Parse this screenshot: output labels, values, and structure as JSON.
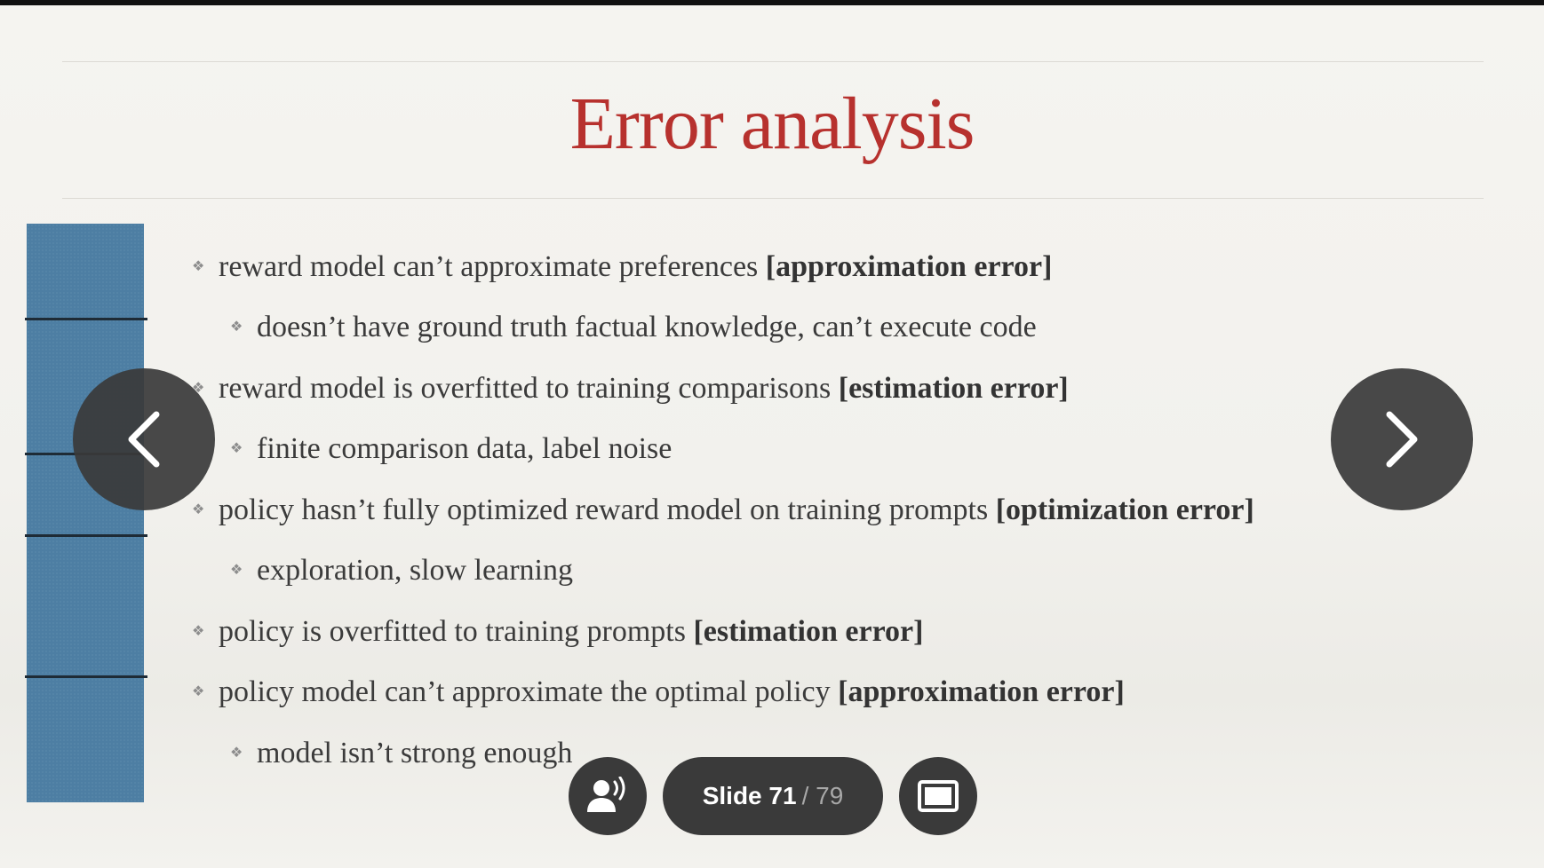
{
  "slide": {
    "title": "Error analysis",
    "bullets": [
      {
        "level": 1,
        "text": "reward model can’t approximate preferences ",
        "bold": "[approximation error]"
      },
      {
        "level": 2,
        "text": "doesn’t have ground truth factual knowledge, can’t execute code",
        "bold": ""
      },
      {
        "level": 1,
        "text": "reward model is overfitted to training comparisons ",
        "bold": "[estimation error]"
      },
      {
        "level": 2,
        "text": "finite comparison data, label noise",
        "bold": ""
      },
      {
        "level": 1,
        "text": "policy hasn’t fully optimized reward model on training prompts ",
        "bold": "[optimization error]"
      },
      {
        "level": 2,
        "text": "exploration, slow learning",
        "bold": ""
      },
      {
        "level": 1,
        "text": "policy is overfitted to training prompts ",
        "bold": "[estimation error]"
      },
      {
        "level": 1,
        "text": "policy model can’t approximate the optimal policy ",
        "bold": "[approximation error]"
      },
      {
        "level": 2,
        "text": "model isn’t strong enough",
        "bold": ""
      }
    ]
  },
  "controls": {
    "prev_icon": "chevron-left-icon",
    "next_icon": "chevron-right-icon",
    "presenter_icon": "presenter-voice-icon",
    "fullscreen_icon": "fullscreen-icon",
    "slide_label": "Slide 71",
    "slide_total": "/ 79"
  },
  "colors": {
    "title": "#b7312e",
    "accent_bar": "#4d7ea3",
    "control_bg": "#3a3a3a"
  }
}
